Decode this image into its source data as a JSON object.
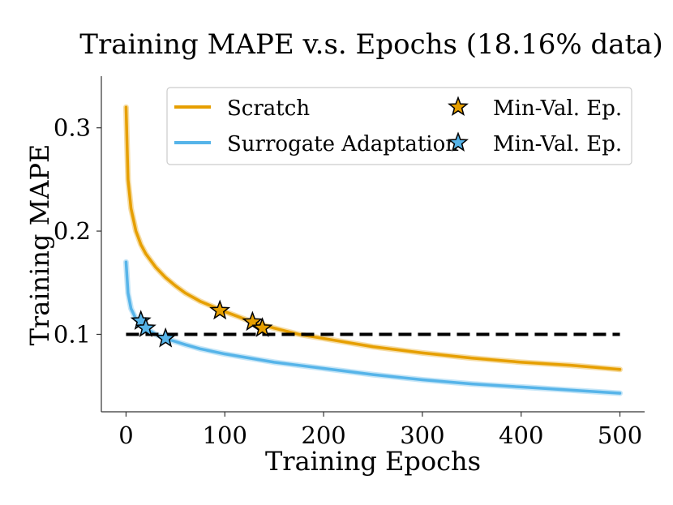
{
  "chart_data": {
    "type": "line",
    "title": "Training MAPE v.s. Epochs (18.16% data)",
    "xlabel": "Training Epochs",
    "ylabel": "Training MAPE",
    "xlim": [
      -25,
      525
    ],
    "ylim": [
      0.025,
      0.35
    ],
    "xticks": [
      0,
      100,
      200,
      300,
      400,
      500
    ],
    "xtick_labels": [
      "0",
      "100",
      "200",
      "300",
      "400",
      "500"
    ],
    "yticks": [
      0.1,
      0.2,
      0.3
    ],
    "ytick_labels": [
      "0.1",
      "0.2",
      "0.3"
    ],
    "grid": false,
    "legend_position": "top-right",
    "series": [
      {
        "name": "Scratch",
        "color": "#E69F00",
        "x": [
          0,
          2,
          5,
          10,
          15,
          20,
          30,
          40,
          50,
          60,
          75,
          100,
          125,
          150,
          175,
          200,
          250,
          300,
          350,
          400,
          450,
          500
        ],
        "values": [
          0.32,
          0.25,
          0.222,
          0.2,
          0.187,
          0.178,
          0.165,
          0.155,
          0.147,
          0.14,
          0.132,
          0.122,
          0.113,
          0.106,
          0.1,
          0.096,
          0.088,
          0.082,
          0.077,
          0.073,
          0.07,
          0.066
        ]
      },
      {
        "name": "Surrogate Adaptation",
        "color": "#56B4E9",
        "x": [
          0,
          2,
          5,
          10,
          15,
          20,
          30,
          40,
          50,
          60,
          75,
          100,
          125,
          150,
          175,
          200,
          250,
          300,
          350,
          400,
          450,
          500
        ],
        "values": [
          0.17,
          0.14,
          0.125,
          0.115,
          0.11,
          0.106,
          0.1,
          0.096,
          0.093,
          0.09,
          0.086,
          0.081,
          0.077,
          0.073,
          0.07,
          0.067,
          0.061,
          0.056,
          0.052,
          0.049,
          0.046,
          0.043
        ]
      }
    ],
    "reference_line": {
      "y": 0.1,
      "x_range": [
        0,
        500
      ],
      "color": "#000000",
      "style": "dashed"
    },
    "markers": [
      {
        "series": "Scratch",
        "label": "Min-Val. Ep.",
        "color": "#E69F00",
        "points": [
          [
            95,
            0.123
          ],
          [
            128,
            0.112
          ],
          [
            138,
            0.106
          ]
        ]
      },
      {
        "series": "Surrogate Adaptation",
        "label": "Min-Val. Ep.",
        "color": "#56B4E9",
        "points": [
          [
            15,
            0.113
          ],
          [
            20,
            0.106
          ],
          [
            40,
            0.096
          ]
        ]
      }
    ],
    "legend": [
      {
        "label": "Scratch",
        "kind": "line",
        "color": "#E69F00"
      },
      {
        "label": "Surrogate Adaptation",
        "kind": "line",
        "color": "#56B4E9"
      },
      {
        "label": "Min-Val. Ep.",
        "kind": "star",
        "color": "#E69F00"
      },
      {
        "label": "Min-Val. Ep.",
        "kind": "star",
        "color": "#56B4E9"
      }
    ]
  }
}
